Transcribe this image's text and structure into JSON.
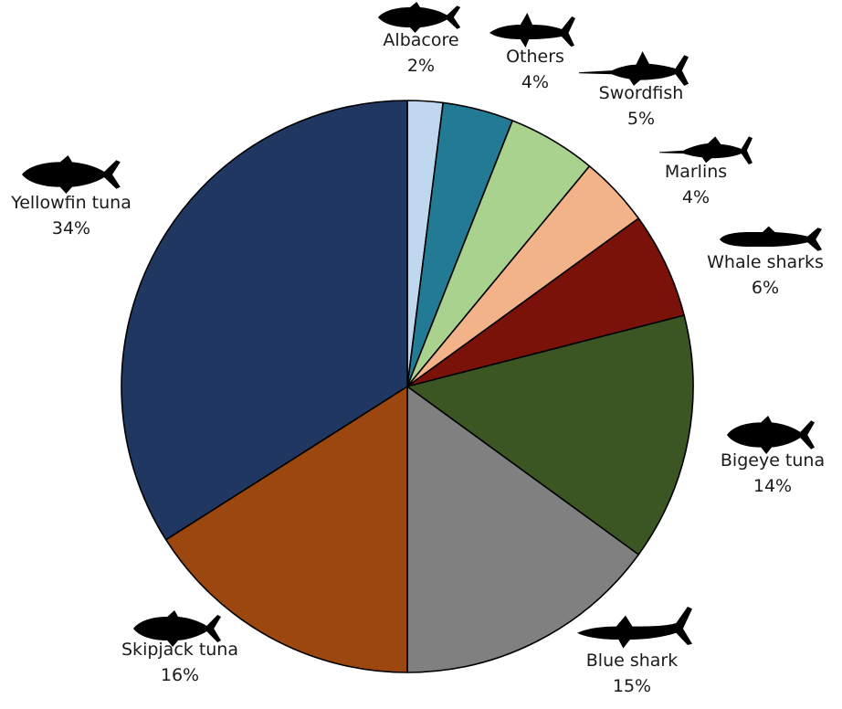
{
  "chart_data": {
    "type": "pie",
    "title": "",
    "start": "12 o'clock",
    "direction": "clockwise",
    "slices": [
      {
        "label": "Albacore",
        "value": 2,
        "display": "2%",
        "color": "#bfd8ef",
        "icon": "tuna-silhouette-icon"
      },
      {
        "label": "Others",
        "value": 4,
        "display": "4%",
        "color": "#237a95",
        "icon": "shark-silhouette-icon"
      },
      {
        "label": "Swordfish",
        "value": 5,
        "display": "5%",
        "color": "#a9d28f",
        "icon": "swordfish-silhouette-icon"
      },
      {
        "label": "Marlins",
        "value": 4,
        "display": "4%",
        "color": "#f2b389",
        "icon": "marlin-silhouette-icon"
      },
      {
        "label": "Whale sharks",
        "value": 6,
        "display": "6%",
        "color": "#7a1209",
        "icon": "whale-shark-silhouette-icon"
      },
      {
        "label": "Bigeye tuna",
        "value": 14,
        "display": "14%",
        "color": "#3b5523",
        "icon": "tuna-silhouette-icon"
      },
      {
        "label": "Blue shark",
        "value": 15,
        "display": "15%",
        "color": "#808080",
        "icon": "blue-shark-silhouette-icon"
      },
      {
        "label": "Skipjack tuna",
        "value": 16,
        "display": "16%",
        "color": "#9c4710",
        "icon": "tuna-silhouette-icon"
      },
      {
        "label": "Yellowfin tuna",
        "value": 34,
        "display": "34%",
        "color": "#203762",
        "icon": "tuna-silhouette-icon"
      }
    ]
  }
}
